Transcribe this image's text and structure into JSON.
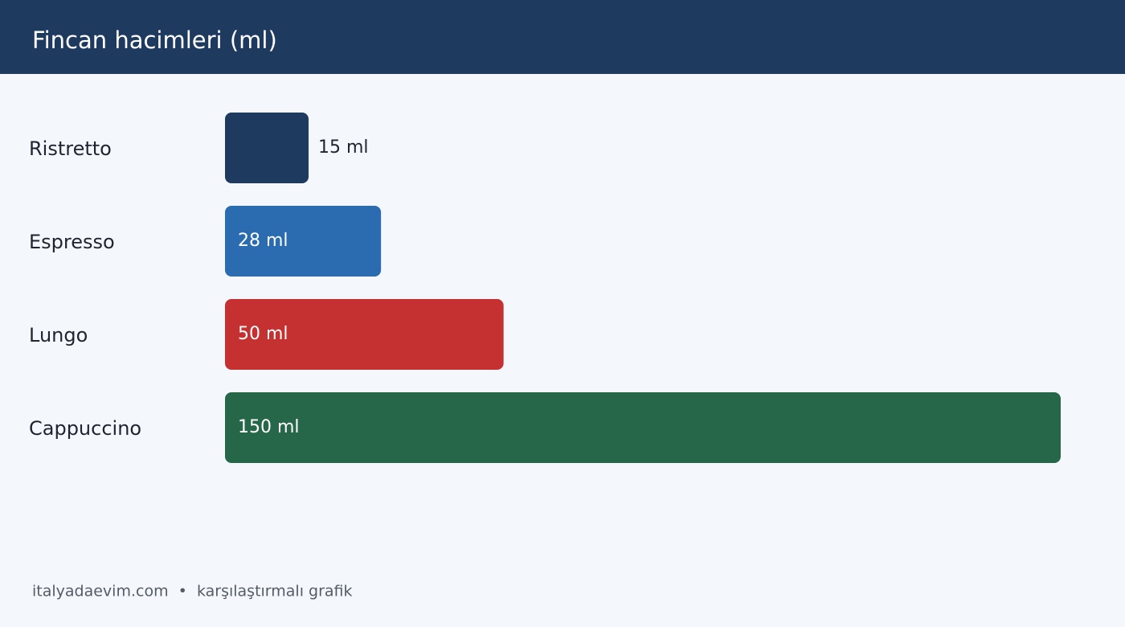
{
  "chart_data": {
    "type": "bar",
    "orientation": "horizontal",
    "title": "Fincan hacimleri (ml)",
    "categories": [
      "Ristretto",
      "Espresso",
      "Lungo",
      "Cappuccino"
    ],
    "values": [
      15,
      28,
      50,
      150
    ],
    "value_labels": [
      "15 ml",
      "28 ml",
      "50 ml",
      "150 ml"
    ],
    "colors": [
      "#1f3a5f",
      "#2b6cb0",
      "#c53030",
      "#276749"
    ],
    "footer": "italyadaevim.com  •  karşılaştırmalı grafik"
  }
}
